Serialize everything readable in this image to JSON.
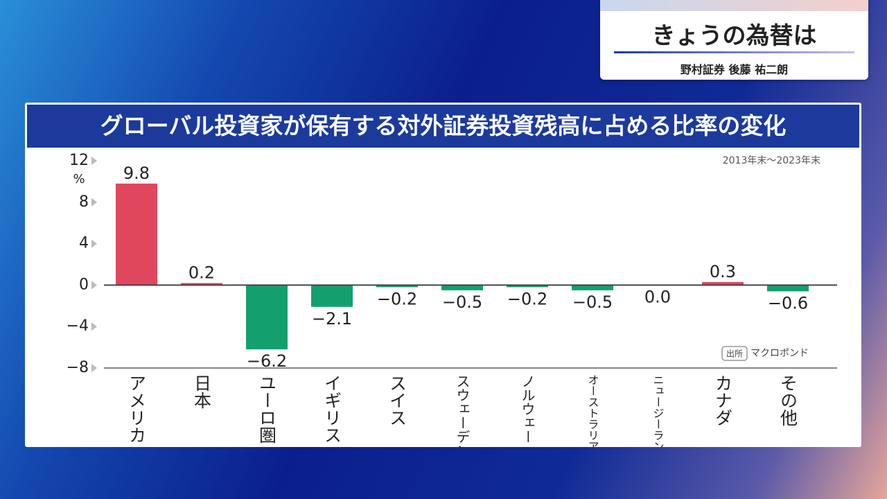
{
  "caption": {
    "title": "きょうの為替は",
    "subtitle": "野村証券 後藤 祐二朗"
  },
  "chart_data": {
    "type": "bar",
    "title": "グローバル投資家が保有する対外証券投資残高に占める比率の変化",
    "subtitle": "2013年末〜2023年末",
    "y_unit": "%",
    "source_tag": "出所",
    "source": "マクロポンド",
    "categories": [
      "アメリカ",
      "日本",
      "ユーロ圏",
      "イギリス",
      "スイス",
      "スウェーデン",
      "ノルウェー",
      "オーストラリア",
      "ニュージーランド",
      "カナダ",
      "その他"
    ],
    "values": [
      9.8,
      0.2,
      -6.2,
      -2.1,
      -0.2,
      -0.5,
      -0.2,
      -0.5,
      0.0,
      0.3,
      -0.6
    ],
    "value_labels": [
      "9.8",
      "0.2",
      "−6.2",
      "−2.1",
      "−0.2",
      "−0.5",
      "−0.2",
      "−0.5",
      "0.0",
      "0.3",
      "−0.6"
    ],
    "colors": {
      "positive": "#e0475f",
      "negative": "#14a06e"
    },
    "ylim": [
      -8,
      12
    ],
    "yticks": [
      {
        "value": -8,
        "label": "−8"
      },
      {
        "value": -4,
        "label": "−4"
      },
      0,
      4,
      8,
      12
    ]
  }
}
